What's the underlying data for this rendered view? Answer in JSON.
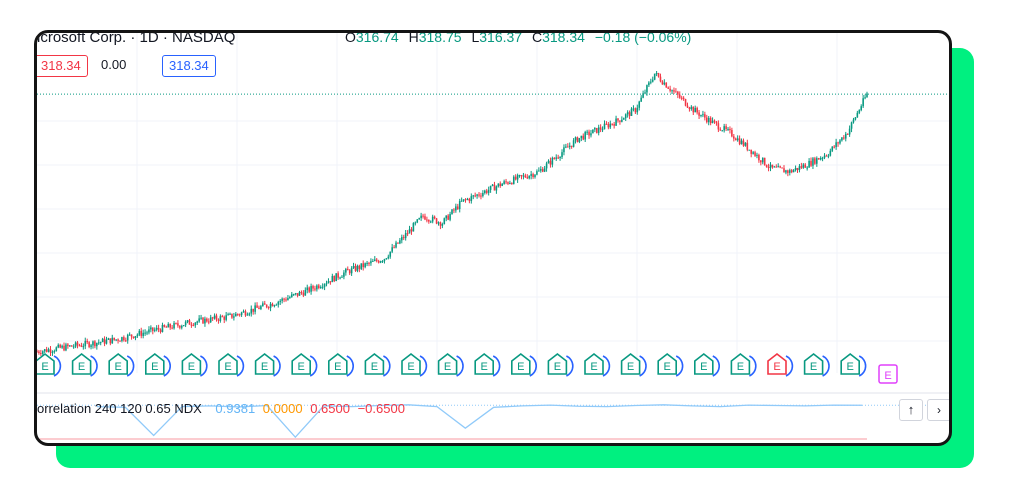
{
  "header": {
    "symbol_title": "icrosoft Corp. · 1D · NASDAQ",
    "ohlc": [
      {
        "k": "O",
        "v": "316.74"
      },
      {
        "k": "H",
        "v": "318.75"
      },
      {
        "k": "L",
        "v": "316.37"
      },
      {
        "k": "C",
        "v": "318.34"
      },
      {
        "k": "",
        "v": "−0.18 (−0.06%)"
      }
    ]
  },
  "trade": {
    "sell": "318.34",
    "spread": "0.00",
    "buy": "318.34"
  },
  "earnings_marker": {
    "label": "E",
    "count": 23,
    "highlight_index": 20
  },
  "indicator": {
    "name": "orrelation 240 120 0.65 NDX",
    "v1": "0.9381",
    "v2": "0.0000",
    "v3": "0.6500",
    "v4": "−0.6500"
  },
  "buttons": {
    "up": "↑",
    "more": "›"
  },
  "colors": {
    "up": "#089981",
    "down": "#f23645",
    "blue": "#2962ff",
    "accent_green": "#00f080",
    "purple": "#e040fb",
    "corr_line": "#90caf9"
  },
  "chart_data": {
    "type": "candlestick",
    "title": "icrosoft Corp. · 1D · NASDAQ",
    "x": [
      0,
      40,
      80,
      120,
      160,
      200,
      240,
      280,
      320,
      360,
      400,
      420,
      440,
      480,
      520,
      560,
      600,
      620,
      640,
      660,
      680,
      700,
      720,
      740,
      760,
      780,
      800,
      820,
      840,
      860
    ],
    "close": [
      98,
      103,
      108,
      116,
      123,
      128,
      138,
      150,
      166,
      178,
      214,
      208,
      226,
      241,
      252,
      280,
      295,
      305,
      336,
      320,
      305,
      294,
      284,
      270,
      255,
      252,
      259,
      268,
      286,
      318.34
    ],
    "last_price": 318.34,
    "ylim": [
      95,
      345
    ],
    "indicator_series": [
      0.9,
      0.88,
      0.1,
      0.9,
      0.92,
      0.89,
      0.93,
      0.05,
      0.92,
      0.9,
      0.93,
      0.95,
      0.9,
      0.3,
      0.88,
      0.92,
      0.94,
      0.91,
      0.9,
      0.93,
      0.95,
      0.92,
      0.9,
      0.94,
      0.93,
      0.92,
      0.94,
      0.9381
    ]
  }
}
